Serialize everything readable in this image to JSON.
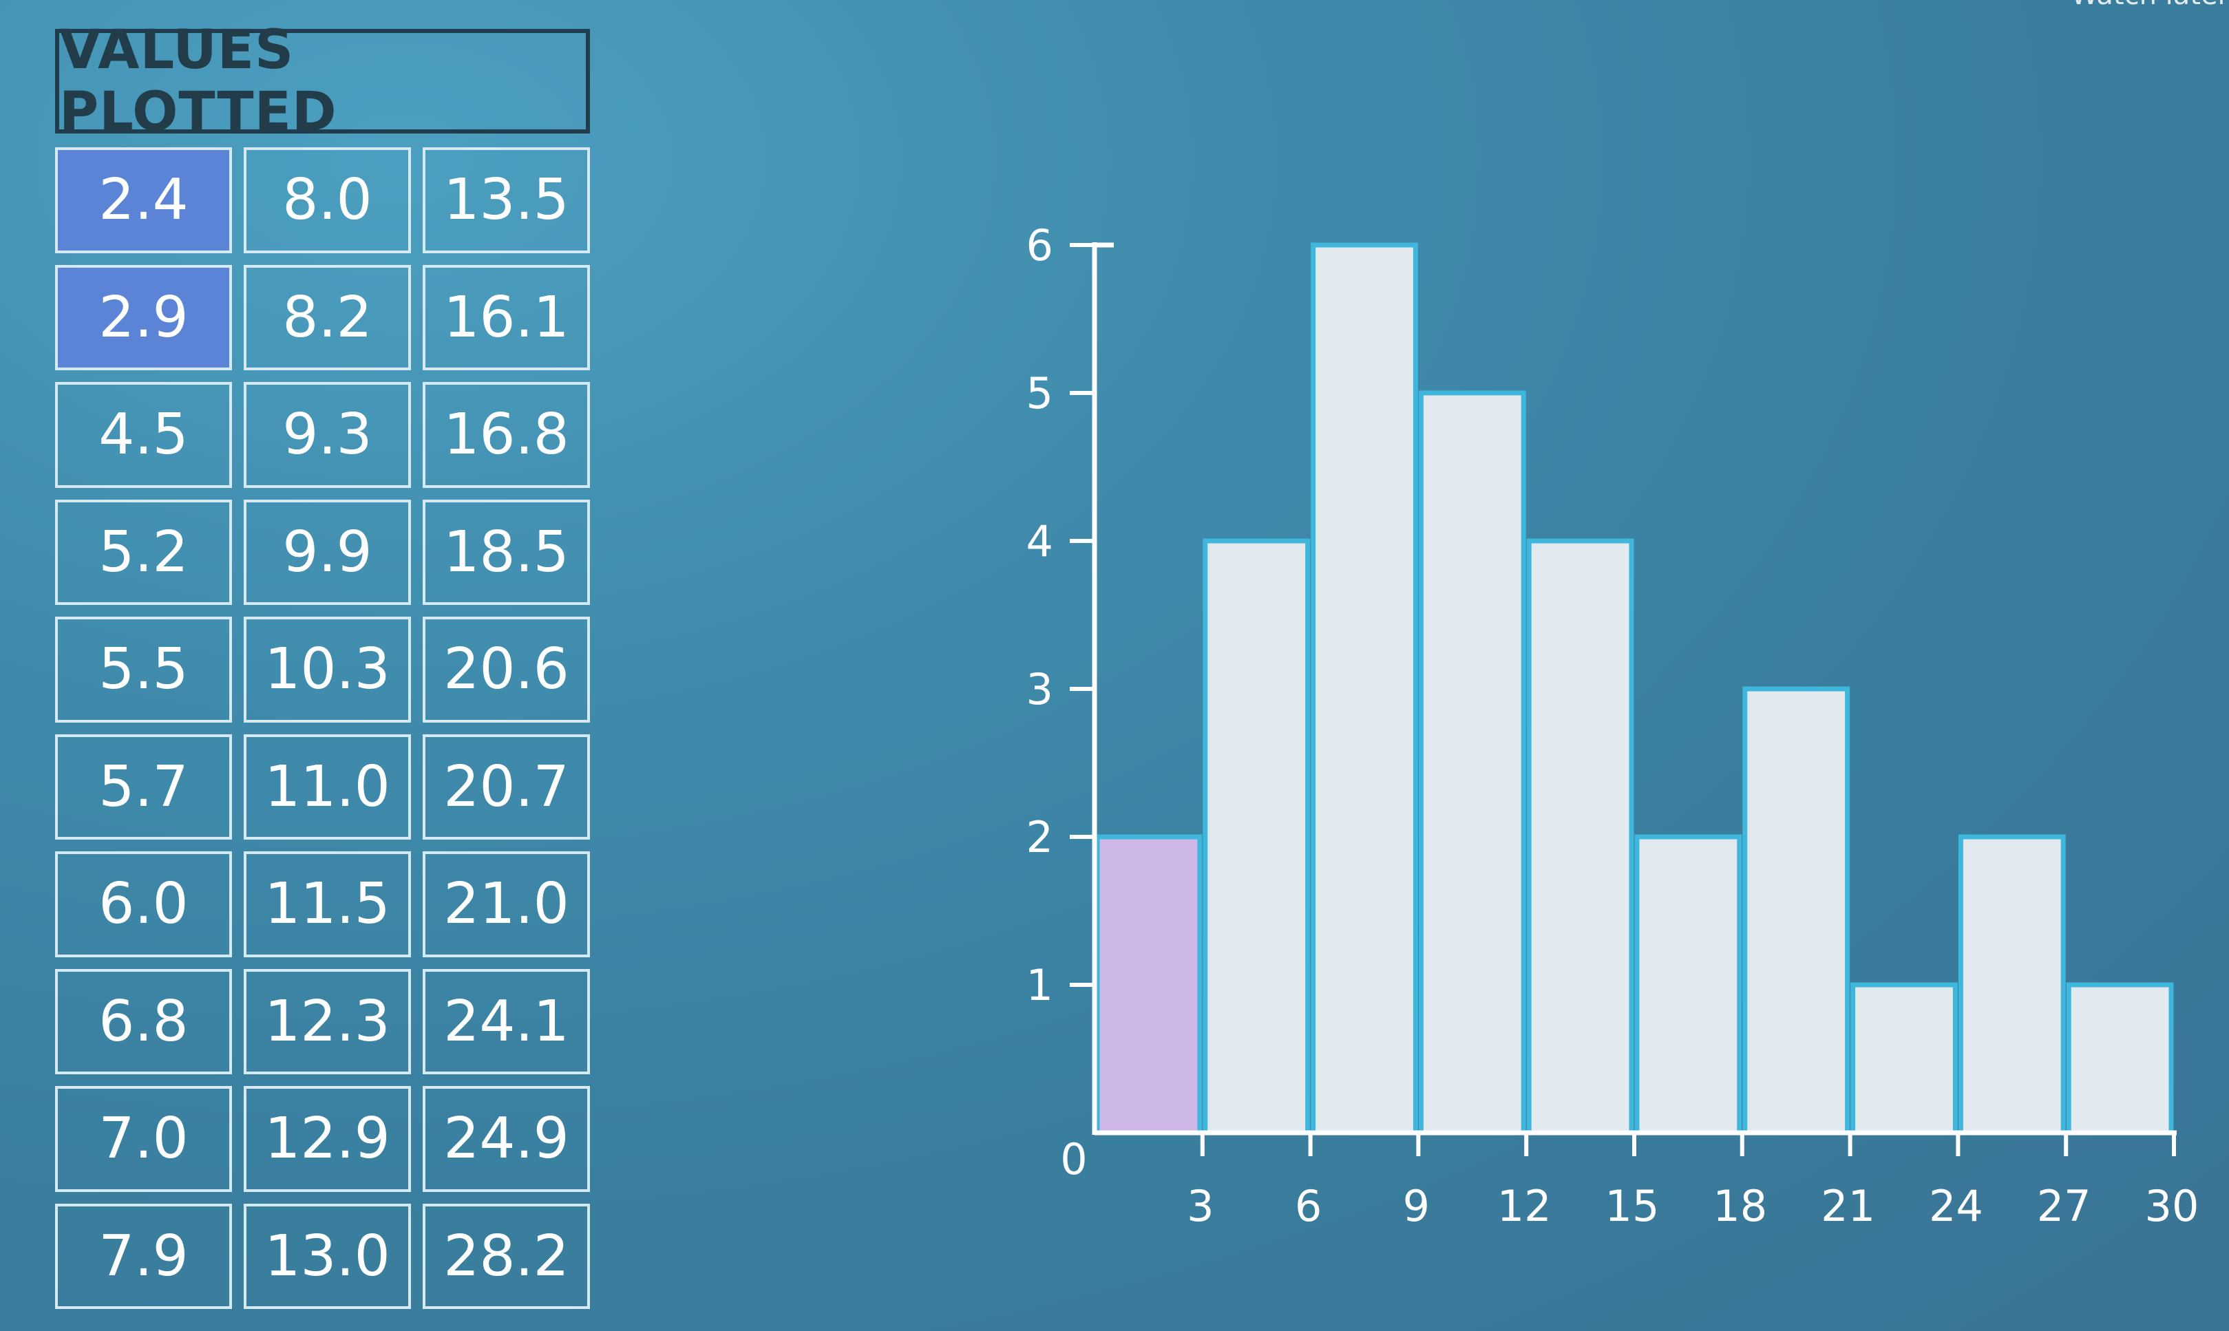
{
  "overlay": {
    "corner_text": "Watch later"
  },
  "table": {
    "title": "VALUES PLOTTED",
    "rows": [
      [
        "2.4",
        "8.0",
        "13.5"
      ],
      [
        "2.9",
        "8.2",
        "16.1"
      ],
      [
        "4.5",
        "9.3",
        "16.8"
      ],
      [
        "5.2",
        "9.9",
        "18.5"
      ],
      [
        "5.5",
        "10.3",
        "20.6"
      ],
      [
        "5.7",
        "11.0",
        "20.7"
      ],
      [
        "6.0",
        "11.5",
        "21.0"
      ],
      [
        "6.8",
        "12.3",
        "24.1"
      ],
      [
        "7.0",
        "12.9",
        "24.9"
      ],
      [
        "7.9",
        "13.0",
        "28.2"
      ]
    ],
    "highlighted_values": [
      "2.4",
      "2.9"
    ]
  },
  "chart_data": {
    "type": "bar",
    "bins": [
      [
        0,
        3
      ],
      [
        3,
        6
      ],
      [
        6,
        9
      ],
      [
        9,
        12
      ],
      [
        12,
        15
      ],
      [
        15,
        18
      ],
      [
        18,
        21
      ],
      [
        21,
        24
      ],
      [
        24,
        27
      ],
      [
        27,
        30
      ]
    ],
    "values": [
      2,
      4,
      6,
      5,
      4,
      2,
      3,
      1,
      2,
      1
    ],
    "highlighted_bins": [
      0
    ],
    "x_ticks": [
      "3",
      "6",
      "9",
      "12",
      "15",
      "18",
      "21",
      "24",
      "27",
      "30"
    ],
    "y_ticks": [
      "1",
      "2",
      "3",
      "4",
      "5",
      "6"
    ],
    "origin_label": "0",
    "xlim": [
      0,
      30
    ],
    "ylim": [
      0,
      6
    ],
    "title": "",
    "xlabel": "",
    "ylabel": "",
    "grid": false,
    "colors": {
      "bar_fill": "#e3eaef",
      "bar_stroke": "#3fb7dc",
      "highlight_fill": "#cdb7e6",
      "axis": "#ffffff"
    }
  }
}
